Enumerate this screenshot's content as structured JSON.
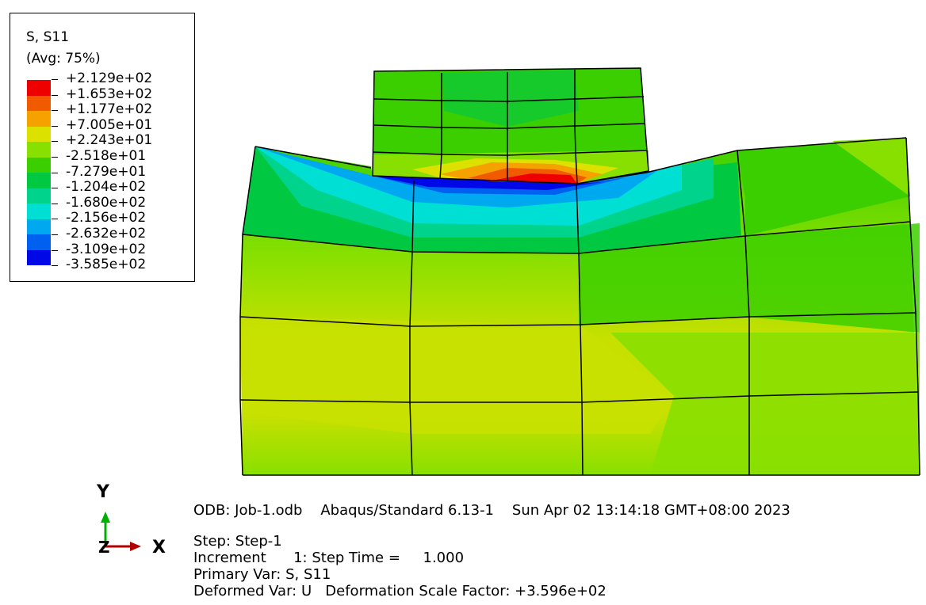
{
  "legend": {
    "title": "S, S11",
    "averaging": "(Avg: 75%)",
    "values": [
      "+2.129e+02",
      "+1.653e+02",
      "+1.177e+02",
      "+7.005e+01",
      "+2.243e+01",
      "-2.518e+01",
      "-7.279e+01",
      "-1.204e+02",
      "-1.680e+02",
      "-2.156e+02",
      "-2.632e+02",
      "-3.109e+02",
      "-3.585e+02"
    ],
    "colors": [
      "#ee0000",
      "#f25a00",
      "#f5a200",
      "#dde100",
      "#88e000",
      "#3ccf00",
      "#00c840",
      "#00d38c",
      "#00dfd4",
      "#00a8f0",
      "#0060f0",
      "#0008e8"
    ]
  },
  "triad": {
    "y_label": "Y",
    "z_label": "Z",
    "x_label": "X"
  },
  "info": {
    "odb_line": "ODB: Job-1.odb    Abaqus/Standard 6.13-1    Sun Apr 02 13:14:18 GMT+08:00 2023",
    "step_line": "Step: Step-1",
    "increment_line": "Increment      1: Step Time =     1.000",
    "primary_line": "Primary Var: S, S11",
    "deformed_line": "Deformed Var: U   Deformation Scale Factor: +3.596e+02"
  }
}
